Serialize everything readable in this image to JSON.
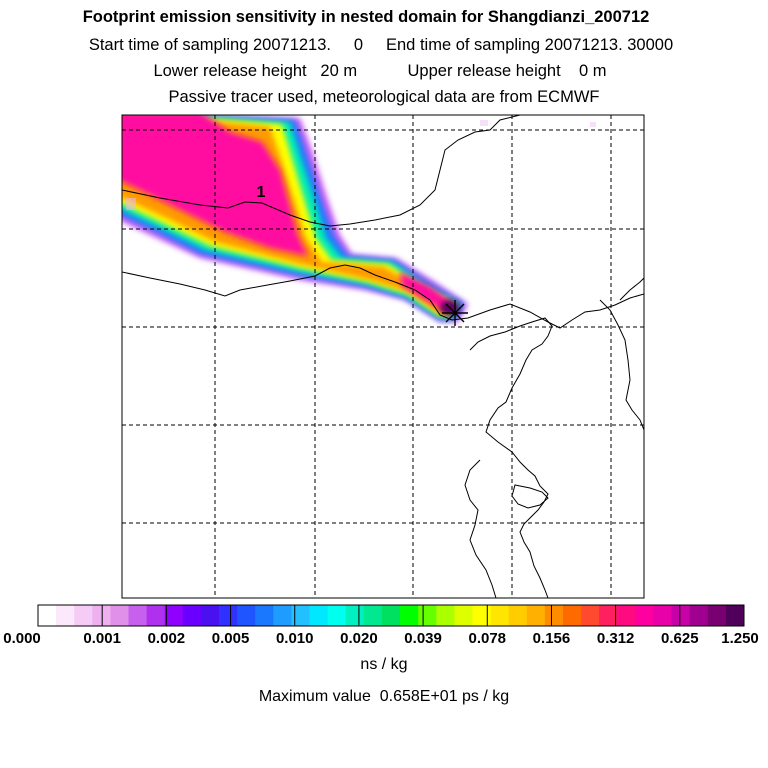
{
  "header": {
    "title": "Footprint emission sensitivity in nested domain for Shangdianzi_200712",
    "line1": "Start time of sampling 20071213.     0     End time of sampling 20071213. 30000",
    "line2": "Lower release height   20 m           Upper release height    0 m",
    "line3": "Passive tracer used, meteorological data are from ECMWF"
  },
  "map": {
    "contour_label": "1",
    "receptor_marker": "star"
  },
  "colorbar": {
    "ticks": [
      "0.000",
      "0.001",
      "0.002",
      "0.005",
      "0.010",
      "0.020",
      "0.039",
      "0.078",
      "0.156",
      "0.312",
      "0.625",
      "1.250"
    ],
    "unit": "ns / kg",
    "colors": [
      "#ffffff",
      "#fbe8fb",
      "#f5ccf5",
      "#eeb0ee",
      "#e090e8",
      "#c860ee",
      "#b030f0",
      "#9000ff",
      "#6a00ff",
      "#4a10f0",
      "#3030ff",
      "#1f55ff",
      "#1a78ff",
      "#1e9cff",
      "#22c0ff",
      "#00e8ff",
      "#00ffee",
      "#00f0c0",
      "#00e890",
      "#00e060",
      "#00ff00",
      "#66ff00",
      "#aaff00",
      "#ddff00",
      "#ffff00",
      "#ffe600",
      "#ffcc00",
      "#ffb000",
      "#ff8c00",
      "#ff6a00",
      "#ff4a30",
      "#ff2060",
      "#ff0a80",
      "#ff00a0",
      "#e800a8",
      "#c800a8",
      "#a00090",
      "#780070",
      "#50005a"
    ]
  },
  "maximum": "Maximum value  0.658E+01 ps / kg"
}
